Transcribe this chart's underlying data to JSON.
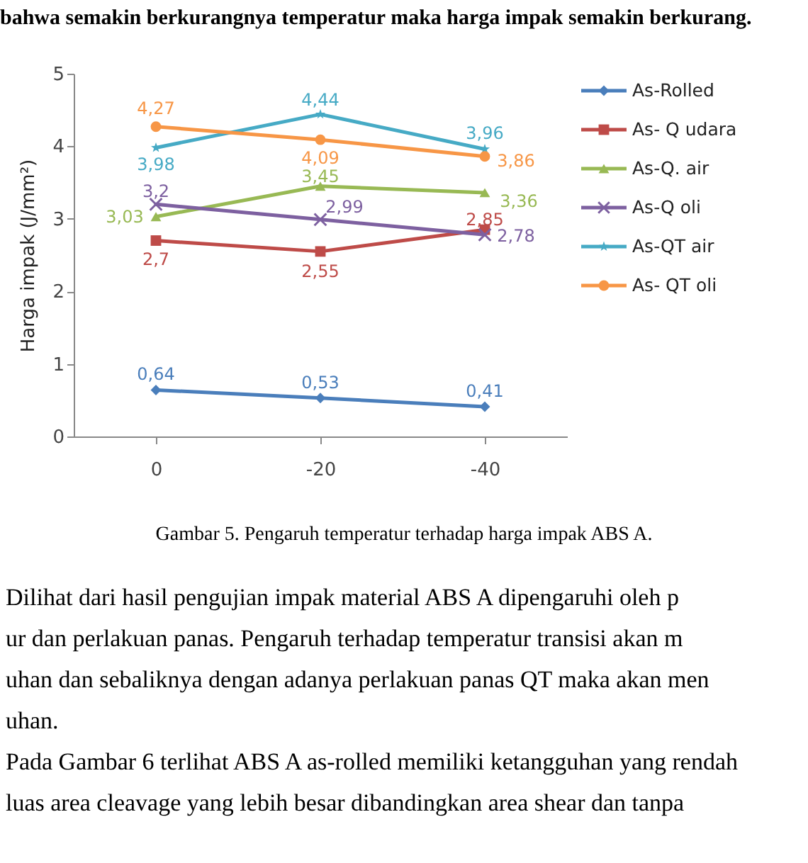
{
  "chart_data": {
    "type": "line",
    "ylabel": "Harga impak (J/mm²)",
    "categories": [
      "0",
      "-20",
      "-40"
    ],
    "ylim": [
      0,
      5
    ],
    "yticks": [
      0,
      1,
      2,
      3,
      4,
      5
    ],
    "grid": false,
    "legend": "right",
    "data_labels": true,
    "series": [
      {
        "name": "As-Rolled",
        "color": "#4a7ebb",
        "marker": "diamond",
        "values": [
          0.64,
          0.53,
          0.41
        ],
        "value_labels": [
          "0,64",
          "0,53",
          "0,41"
        ]
      },
      {
        "name": "As- Q udara",
        "color": "#be4b48",
        "marker": "square",
        "values": [
          2.7,
          2.55,
          2.85
        ],
        "value_labels": [
          "2,7",
          "2,55",
          "2,85"
        ]
      },
      {
        "name": "As-Q. air",
        "color": "#98b954",
        "marker": "triangle",
        "values": [
          3.03,
          3.45,
          3.36
        ],
        "value_labels": [
          "3,03",
          "3,45",
          "3,36"
        ]
      },
      {
        "name": "As-Q  oli",
        "color": "#7d60a0",
        "marker": "cross",
        "values": [
          3.2,
          2.99,
          2.78
        ],
        "value_labels": [
          "3,2",
          "2,99",
          "2,78"
        ]
      },
      {
        "name": "As-QT air",
        "color": "#46aac5",
        "marker": "star",
        "values": [
          3.98,
          4.44,
          3.96
        ],
        "value_labels": [
          "3,98",
          "4,44",
          "3,96"
        ]
      },
      {
        "name": "As- QT oli",
        "color": "#f79646",
        "marker": "circle",
        "values": [
          4.27,
          4.09,
          3.86
        ],
        "value_labels": [
          "4,27",
          "4,09",
          "3,86"
        ]
      }
    ],
    "annotations": [
      "bahwa semakin berkurangnya temperatur maka harga impak semakin berkurang.",
      "Gambar 5. Pengaruh temperatur terhadap harga impak ABS A.",
      "Dilihat  dari  hasil  pengujian  impak  material  ABS  A  dipengaruhi  oleh  p",
      "ur  dan  perlakuan  panas.  Pengaruh  terhadap  temperatur  transisi  akan  m",
      "uhan  dan sebaliknya dengan adanya perlakuan panas QT maka akan men",
      "uhan.",
      "Pada Gambar 6 terlihat ABS A as-rolled memiliki ketangguhan yang rendah",
      "luas area cleavage yang lebih besar dibandingkan area shear dan tanpa"
    ]
  }
}
